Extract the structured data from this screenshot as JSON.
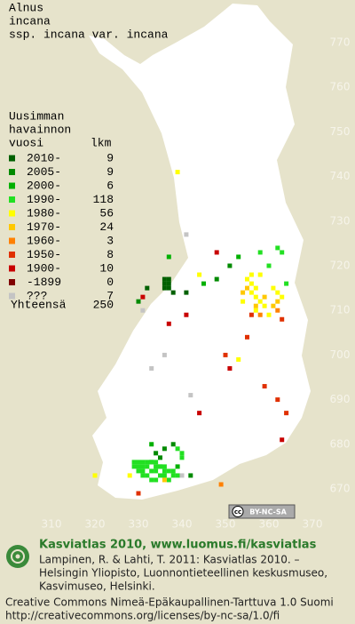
{
  "header": {
    "lines": [
      "Alnus",
      "incana",
      "ssp. incana var. incana"
    ]
  },
  "legend": {
    "header": [
      "Uusimman",
      "havainnon",
      "vuosi"
    ],
    "count_header": "lkm",
    "entries": [
      {
        "label": "2010-",
        "count": 9,
        "color": "#006000",
        "x": [
          336,
          337,
          336,
          337,
          337,
          336,
          338,
          341,
          332
        ],
        "y": [
          717,
          717,
          716,
          716,
          715,
          715,
          714,
          714,
          715
        ]
      },
      {
        "label": "2005-",
        "count": 9,
        "color": "#008a00",
        "x": [
          334,
          335,
          336,
          342,
          351,
          348,
          333,
          338,
          330
        ],
        "y": [
          678,
          677,
          679,
          673,
          720,
          717,
          676,
          680,
          712
        ]
      },
      {
        "label": "2000-",
        "count": 6,
        "color": "#00b000",
        "x": [
          335,
          339,
          353,
          345,
          337,
          333
        ],
        "y": [
          675,
          675,
          722,
          716,
          722,
          680
        ]
      },
      {
        "label": "1990-",
        "count": 118,
        "color": "#22e022",
        "x": [
          329,
          330,
          331,
          332,
          333,
          334,
          329,
          330,
          331,
          332,
          334,
          335,
          336,
          330,
          331,
          333,
          334,
          336,
          337,
          338,
          331,
          332,
          335,
          336,
          338,
          339,
          333,
          334,
          337,
          340,
          362,
          363,
          360,
          364,
          358,
          339,
          340
        ],
        "y": [
          676,
          676,
          676,
          676,
          676,
          676,
          675,
          675,
          675,
          675,
          675,
          675,
          675,
          674,
          674,
          674,
          674,
          674,
          674,
          674,
          673,
          673,
          673,
          673,
          673,
          673,
          672,
          672,
          672,
          677,
          724,
          723,
          720,
          716,
          723,
          679,
          678
        ]
      },
      {
        "label": "1980-",
        "count": 56,
        "color": "#ffff00",
        "x": [
          355,
          356,
          357,
          356,
          357,
          358,
          359,
          356,
          358,
          361,
          362,
          363,
          354,
          357,
          360,
          339,
          320,
          328,
          344,
          353
        ],
        "y": [
          717,
          716,
          715,
          714,
          713,
          712,
          711,
          718,
          718,
          715,
          714,
          713,
          712,
          710,
          709,
          741,
          673,
          673,
          718,
          699
        ]
      },
      {
        "label": "1970-",
        "count": 24,
        "color": "#ffc800",
        "x": [
          357,
          359,
          355,
          361,
          362,
          354,
          336
        ],
        "y": [
          711,
          713,
          715,
          711,
          712,
          714,
          672
        ]
      },
      {
        "label": "1960-",
        "count": 3,
        "color": "#ff8000",
        "x": [
          362,
          349,
          358
        ],
        "y": [
          710,
          671,
          709
        ]
      },
      {
        "label": "1950-",
        "count": 8,
        "color": "#e03000",
        "x": [
          356,
          363,
          355,
          350,
          364,
          330,
          359,
          362
        ],
        "y": [
          709,
          708,
          704,
          700,
          687,
          669,
          693,
          690
        ]
      },
      {
        "label": "1900-",
        "count": 10,
        "color": "#c80000",
        "x": [
          348,
          331,
          344,
          341,
          363,
          337,
          351
        ],
        "y": [
          723,
          713,
          687,
          709,
          681,
          707,
          697
        ]
      },
      {
        "label": "-1899",
        "count": 0,
        "color": "#800000",
        "x": [],
        "y": []
      },
      {
        "label": "???",
        "count": 7,
        "color": "#c4c4c4",
        "x": [
          341,
          336,
          342,
          331,
          340,
          333
        ],
        "y": [
          727,
          700,
          691,
          710,
          673,
          697
        ]
      }
    ],
    "total_label": "Yhteensä",
    "total": 250
  },
  "map": {
    "xticks": [
      310,
      320,
      330,
      340,
      350,
      360,
      370
    ],
    "yticks": [
      770,
      760,
      750,
      740,
      730,
      720,
      710,
      700,
      690,
      680,
      670
    ],
    "xlim": [
      310,
      370
    ],
    "ylim": [
      670,
      770
    ]
  },
  "license_badge": "BY-NC-SA",
  "footer": {
    "title": "Kasviatlas 2010, www.luomus.fi/kasviatlas",
    "citation": [
      "Lampinen, R. & Lahti, T. 2011: Kasviatlas 2010. –",
      "Helsingin Yliopisto, Luonnontieteellinen keskusmuseo,",
      "Kasvimuseo, Helsinki."
    ],
    "license": [
      "Creative Commons Nimeä-Epäkaupallinen-Tarttuva 1.0 Suomi",
      "http://creativecommons.org/licenses/by-nc-sa/1.0/fi"
    ]
  }
}
